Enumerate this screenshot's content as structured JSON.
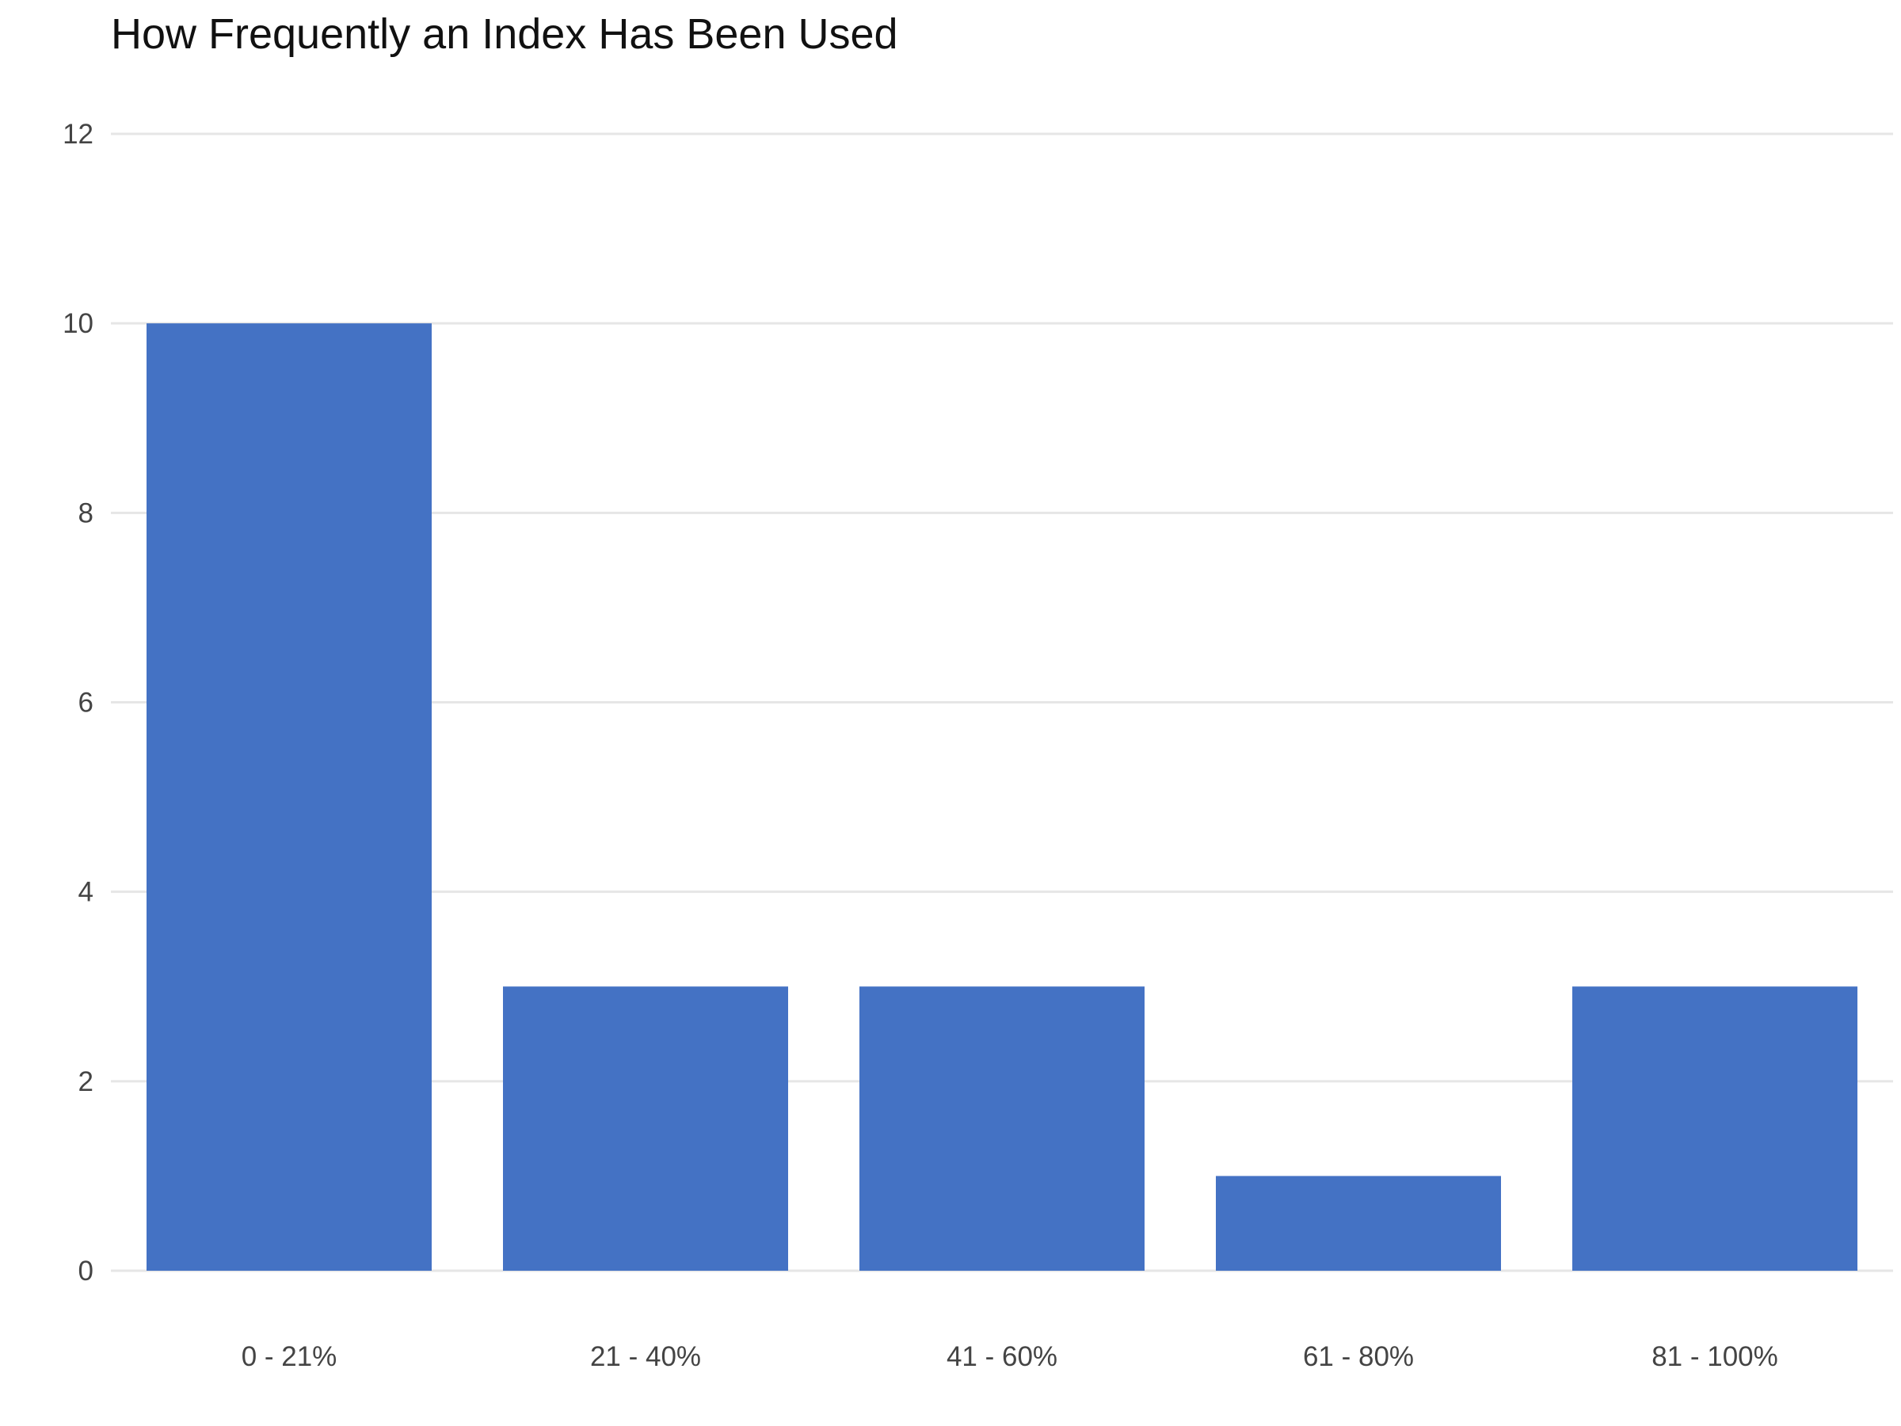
{
  "chart_data": {
    "type": "bar",
    "title": "How Frequently an Index Has Been Used",
    "xlabel": "",
    "ylabel": "",
    "categories": [
      "0 - 21%",
      "21 - 40%",
      "41 - 60%",
      "61 - 80%",
      "81 - 100%"
    ],
    "values": [
      10,
      3,
      3,
      1,
      3
    ],
    "ylim": [
      0,
      12
    ],
    "yticks": [
      0,
      2,
      4,
      6,
      8,
      10,
      12
    ],
    "grid": true,
    "legend": "none",
    "bar_color": "#4472c4",
    "grid_color": "#e6e6e6"
  }
}
